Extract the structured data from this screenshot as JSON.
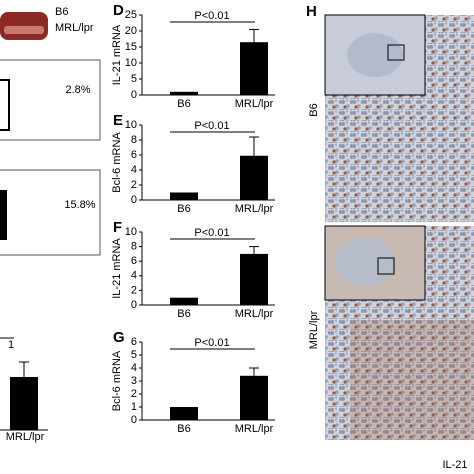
{
  "chart_data": [
    {
      "type": "bar",
      "panel": "D",
      "ylabel": "IL-21 mRNA",
      "categories": [
        "B6",
        "MRL/lpr"
      ],
      "values": [
        1,
        16.5
      ],
      "errors": [
        0,
        4
      ],
      "ylim": [
        0,
        25
      ],
      "yticks": [
        0,
        5,
        10,
        15,
        20,
        25
      ],
      "annotation": "P<0.01",
      "color": "#000000"
    },
    {
      "type": "bar",
      "panel": "E",
      "ylabel": "Bcl-6 mRNA",
      "categories": [
        "B6",
        "MRL/lpr"
      ],
      "values": [
        1,
        5.9
      ],
      "errors": [
        0,
        2.5
      ],
      "ylim": [
        0,
        10
      ],
      "yticks": [
        0,
        2,
        4,
        6,
        8,
        10
      ],
      "annotation": "P<0.01",
      "color": "#000000"
    },
    {
      "type": "bar",
      "panel": "F",
      "ylabel": "IL-21 mRNA",
      "categories": [
        "B6",
        "MRL/lpr"
      ],
      "values": [
        1,
        7
      ],
      "errors": [
        0,
        1
      ],
      "ylim": [
        0,
        10
      ],
      "yticks": [
        0,
        2,
        4,
        6,
        8,
        10
      ],
      "annotation": "P<0.01",
      "color": "#000000"
    },
    {
      "type": "bar",
      "panel": "G",
      "ylabel": "Bcl-6 mRNA",
      "categories": [
        "B6",
        "MRL/lpr"
      ],
      "values": [
        1,
        3.4
      ],
      "errors": [
        0,
        0.6
      ],
      "ylim": [
        0,
        6
      ],
      "yticks": [
        0,
        1,
        2,
        3,
        4,
        5,
        6
      ],
      "annotation": "P<0.01",
      "color": "#000000"
    }
  ],
  "left_panels": {
    "legend": [
      "B6",
      "MRL/lpr"
    ],
    "gates": [
      "2.8%",
      "15.8%"
    ],
    "p_fragment": "1",
    "bar_label": "MRL/lpr"
  },
  "panel_h": {
    "label": "H",
    "rows": [
      "B6",
      "MRL/lpr"
    ],
    "stain": "IL-21"
  }
}
